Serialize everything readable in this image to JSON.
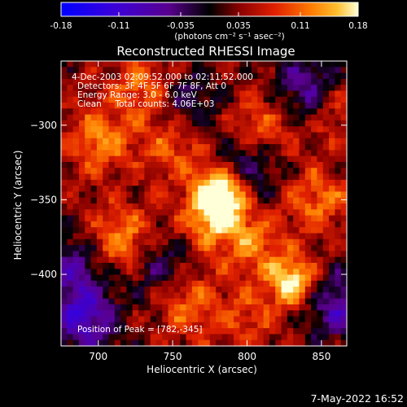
{
  "colorbar": {
    "ticks": [
      "-0.18",
      "-0.11",
      "-0.035",
      "0.035",
      "0.11",
      "0.18"
    ],
    "units_label": "(photons cm⁻² s⁻¹ asec⁻²)",
    "range": [
      -0.18,
      0.18
    ],
    "colors": [
      "#0000ff",
      "#3b00d8",
      "#5a0090",
      "#000000",
      "#8a0000",
      "#e02000",
      "#ff7a00",
      "#ffc030",
      "#ffffd8"
    ]
  },
  "chart_data": {
    "type": "heatmap",
    "title": "Reconstructed RHESSI Image",
    "xlabel": "Heliocentric X (arcsec)",
    "ylabel": "Heliocentric Y (arcsec)",
    "xlim": [
      675,
      867
    ],
    "ylim": [
      -448,
      -257
    ],
    "x_ticks": [
      700,
      750,
      800,
      850
    ],
    "y_ticks": [
      -300,
      -350,
      -400
    ],
    "annotations": {
      "time": "4-Dec-2003 02:09:52.000 to 02:11:52.000",
      "detectors": "Detectors: 3F 4F 5F 6F 7F 8F, Att 0",
      "energy": "Energy Range: 3.0 - 6.0 keV",
      "clean": "Clean     Total counts: 4.06E+03",
      "peak": "Position of Peak = [782,-345]"
    },
    "peak": {
      "x": 782,
      "y": -345
    },
    "sources": [
      {
        "x": 782,
        "y": -345,
        "amp": 1.0
      },
      {
        "x": 778,
        "y": -362,
        "amp": 0.65
      },
      {
        "x": 830,
        "y": -405,
        "amp": 0.85
      },
      {
        "x": 760,
        "y": -420,
        "amp": 0.45
      },
      {
        "x": 716,
        "y": -377,
        "amp": 0.55
      },
      {
        "x": 700,
        "y": -310,
        "amp": 0.5
      },
      {
        "x": 730,
        "y": -275,
        "amp": 0.45
      },
      {
        "x": 750,
        "y": -315,
        "amp": 0.4
      },
      {
        "x": 810,
        "y": -300,
        "amp": 0.4
      },
      {
        "x": 848,
        "y": -350,
        "amp": 0.45
      },
      {
        "x": 805,
        "y": -380,
        "amp": 0.4
      },
      {
        "x": 800,
        "y": -430,
        "amp": 0.3
      },
      {
        "x": 860,
        "y": -290,
        "amp": 0.3
      }
    ],
    "negative_regions": [
      {
        "x": 690,
        "y": -430,
        "amp": -0.7
      },
      {
        "x": 683,
        "y": -395,
        "amp": -0.5
      },
      {
        "x": 862,
        "y": -420,
        "amp": -0.6
      },
      {
        "x": 840,
        "y": -275,
        "amp": -0.55
      },
      {
        "x": 760,
        "y": -285,
        "amp": -0.4
      },
      {
        "x": 800,
        "y": -330,
        "amp": -0.45
      },
      {
        "x": 742,
        "y": -395,
        "amp": -0.4
      }
    ]
  },
  "footer": {
    "date": "7-May-2022 16:52"
  }
}
